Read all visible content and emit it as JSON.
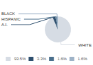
{
  "chart_data": {
    "type": "pie",
    "categories": [
      "WHITE",
      "A.I.",
      "HISPANIC",
      "BLACK"
    ],
    "values": [
      93.5,
      3.3,
      1.6,
      1.6
    ],
    "value_labels": [
      "93.5%",
      "3.3%",
      "1.6%",
      "1.6%"
    ],
    "colors": [
      "#d6dce4",
      "#2e4f6e",
      "#4a6f8c",
      "#9eb3c7"
    ],
    "legend": "bottom"
  }
}
